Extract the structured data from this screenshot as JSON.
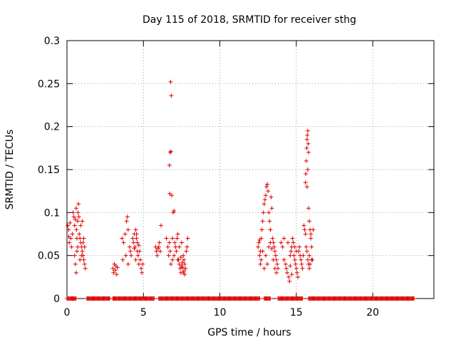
{
  "chart_data": {
    "type": "scatter",
    "title": "Day 115 of 2018, SRMTID for receiver sthg",
    "xlabel": "GPS time / hours",
    "ylabel": "SRMTID / TECUs",
    "xlim": [
      0,
      24
    ],
    "ylim": [
      0,
      0.3
    ],
    "x_ticks": [
      0,
      5,
      10,
      15,
      20
    ],
    "y_ticks": [
      0,
      0.05,
      0.1,
      0.15,
      0.2,
      0.25,
      0.3
    ],
    "x_tick_labels": [
      "0",
      "5",
      "10",
      "15",
      "20"
    ],
    "y_tick_labels": [
      "0",
      "0.05",
      "0.1",
      "0.15",
      "0.2",
      "0.25",
      "0.3"
    ],
    "grid": true,
    "marker": "plus",
    "color": "#dd0000",
    "series": [
      {
        "name": "",
        "points": [
          [
            0.05,
            0.085
          ],
          [
            0.1,
            0.08
          ],
          [
            0.12,
            0.072
          ],
          [
            0.15,
            0.065
          ],
          [
            0.2,
            0.088
          ],
          [
            0.25,
            0.07
          ],
          [
            0.3,
            0.06
          ],
          [
            0.35,
            0.075
          ],
          [
            0.4,
            0.1
          ],
          [
            0.45,
            0.095
          ],
          [
            0.5,
            0.085
          ],
          [
            0.55,
            0.092
          ],
          [
            0.6,
            0.105
          ],
          [
            0.62,
            0.08
          ],
          [
            0.65,
            0.07
          ],
          [
            0.7,
            0.09
          ],
          [
            0.72,
            0.1
          ],
          [
            0.75,
            0.11
          ],
          [
            0.78,
            0.095
          ],
          [
            0.5,
            0.05
          ],
          [
            0.55,
            0.04
          ],
          [
            0.6,
            0.03
          ],
          [
            0.65,
            0.055
          ],
          [
            0.7,
            0.06
          ],
          [
            0.8,
            0.075
          ],
          [
            0.85,
            0.07
          ],
          [
            0.9,
            0.065
          ],
          [
            0.95,
            0.06
          ],
          [
            1.0,
            0.055
          ],
          [
            1.05,
            0.05
          ],
          [
            1.1,
            0.045
          ],
          [
            1.15,
            0.04
          ],
          [
            1.2,
            0.035
          ],
          [
            0.9,
            0.085
          ],
          [
            1.0,
            0.09
          ],
          [
            1.1,
            0.07
          ],
          [
            1.15,
            0.06
          ],
          [
            0.85,
            0.045
          ],
          [
            0.95,
            0.05
          ],
          [
            1.05,
            0.065
          ],
          [
            3.0,
            0.035
          ],
          [
            3.05,
            0.03
          ],
          [
            3.1,
            0.04
          ],
          [
            3.15,
            0.033
          ],
          [
            3.2,
            0.038
          ],
          [
            3.25,
            0.028
          ],
          [
            3.3,
            0.036
          ],
          [
            3.6,
            0.07
          ],
          [
            3.7,
            0.065
          ],
          [
            3.8,
            0.075
          ],
          [
            3.9,
            0.09
          ],
          [
            3.95,
            0.095
          ],
          [
            4.0,
            0.08
          ],
          [
            4.1,
            0.06
          ],
          [
            4.15,
            0.055
          ],
          [
            4.2,
            0.05
          ],
          [
            4.3,
            0.07
          ],
          [
            4.35,
            0.065
          ],
          [
            4.4,
            0.075
          ],
          [
            4.45,
            0.06
          ],
          [
            4.5,
            0.08
          ],
          [
            4.55,
            0.07
          ],
          [
            4.6,
            0.065
          ],
          [
            4.65,
            0.05
          ],
          [
            4.7,
            0.04
          ],
          [
            4.75,
            0.055
          ],
          [
            4.8,
            0.045
          ],
          [
            4.85,
            0.035
          ],
          [
            4.9,
            0.03
          ],
          [
            4.95,
            0.04
          ],
          [
            4.5,
            0.045
          ],
          [
            4.6,
            0.055
          ],
          [
            4.7,
            0.062
          ],
          [
            4.4,
            0.058
          ],
          [
            4.55,
            0.075
          ],
          [
            3.65,
            0.045
          ],
          [
            3.85,
            0.05
          ],
          [
            4.0,
            0.04
          ],
          [
            5.8,
            0.06
          ],
          [
            5.85,
            0.055
          ],
          [
            5.9,
            0.05
          ],
          [
            5.95,
            0.058
          ],
          [
            6.0,
            0.06
          ],
          [
            6.05,
            0.065
          ],
          [
            6.1,
            0.055
          ],
          [
            6.15,
            0.085
          ],
          [
            6.5,
            0.07
          ],
          [
            6.6,
            0.06
          ],
          [
            6.65,
            0.05
          ],
          [
            6.7,
            0.155
          ],
          [
            6.72,
            0.122
          ],
          [
            6.75,
            0.17
          ],
          [
            6.8,
            0.171
          ],
          [
            6.78,
            0.252
          ],
          [
            6.82,
            0.236
          ],
          [
            6.85,
            0.12
          ],
          [
            6.9,
            0.07
          ],
          [
            6.95,
            0.1
          ],
          [
            7.0,
            0.102
          ],
          [
            7.05,
            0.065
          ],
          [
            7.1,
            0.06
          ],
          [
            7.15,
            0.055
          ],
          [
            7.2,
            0.07
          ],
          [
            7.25,
            0.075
          ],
          [
            6.8,
            0.04
          ],
          [
            6.9,
            0.045
          ],
          [
            7.0,
            0.05
          ],
          [
            6.7,
            0.065
          ],
          [
            6.75,
            0.055
          ],
          [
            7.3,
            0.045
          ],
          [
            7.35,
            0.04
          ],
          [
            7.4,
            0.035
          ],
          [
            7.45,
            0.03
          ],
          [
            7.5,
            0.038
          ],
          [
            7.55,
            0.042
          ],
          [
            7.6,
            0.05
          ],
          [
            7.65,
            0.045
          ],
          [
            7.7,
            0.04
          ],
          [
            7.75,
            0.035
          ],
          [
            7.8,
            0.055
          ],
          [
            7.85,
            0.06
          ],
          [
            7.9,
            0.07
          ],
          [
            7.5,
            0.065
          ],
          [
            7.6,
            0.03
          ],
          [
            7.7,
            0.028
          ],
          [
            7.45,
            0.048
          ],
          [
            7.55,
            0.036
          ],
          [
            7.65,
            0.032
          ],
          [
            7.35,
            0.06
          ],
          [
            7.25,
            0.045
          ],
          [
            12.5,
            0.06
          ],
          [
            12.55,
            0.065
          ],
          [
            12.6,
            0.05
          ],
          [
            12.65,
            0.055
          ],
          [
            12.7,
            0.07
          ],
          [
            12.75,
            0.08
          ],
          [
            12.8,
            0.09
          ],
          [
            12.85,
            0.1
          ],
          [
            12.9,
            0.11
          ],
          [
            12.95,
            0.115
          ],
          [
            13.0,
            0.12
          ],
          [
            13.05,
            0.13
          ],
          [
            13.1,
            0.133
          ],
          [
            13.15,
            0.125
          ],
          [
            13.2,
            0.1
          ],
          [
            13.25,
            0.09
          ],
          [
            13.3,
            0.08
          ],
          [
            13.35,
            0.118
          ],
          [
            13.4,
            0.105
          ],
          [
            13.45,
            0.07
          ],
          [
            13.5,
            0.065
          ],
          [
            13.55,
            0.06
          ],
          [
            13.6,
            0.055
          ],
          [
            13.65,
            0.05
          ],
          [
            13.7,
            0.045
          ],
          [
            13.75,
            0.04
          ],
          [
            13.8,
            0.035
          ],
          [
            13.0,
            0.05
          ],
          [
            13.1,
            0.04
          ],
          [
            12.9,
            0.035
          ],
          [
            12.7,
            0.045
          ],
          [
            12.8,
            0.055
          ],
          [
            13.2,
            0.06
          ],
          [
            13.3,
            0.065
          ],
          [
            13.4,
            0.058
          ],
          [
            13.5,
            0.045
          ],
          [
            13.6,
            0.035
          ],
          [
            13.7,
            0.03
          ],
          [
            12.6,
            0.068
          ],
          [
            12.65,
            0.04
          ],
          [
            14.0,
            0.065
          ],
          [
            14.1,
            0.06
          ],
          [
            14.2,
            0.045
          ],
          [
            14.3,
            0.04
          ],
          [
            14.35,
            0.035
          ],
          [
            14.4,
            0.03
          ],
          [
            14.5,
            0.025
          ],
          [
            14.55,
            0.02
          ],
          [
            14.6,
            0.05
          ],
          [
            14.65,
            0.055
          ],
          [
            14.7,
            0.06
          ],
          [
            14.75,
            0.07
          ],
          [
            14.8,
            0.065
          ],
          [
            14.85,
            0.05
          ],
          [
            14.9,
            0.045
          ],
          [
            14.95,
            0.04
          ],
          [
            15.0,
            0.035
          ],
          [
            15.05,
            0.03
          ],
          [
            15.1,
            0.025
          ],
          [
            15.15,
            0.055
          ],
          [
            15.2,
            0.06
          ],
          [
            15.25,
            0.05
          ],
          [
            15.3,
            0.045
          ],
          [
            15.35,
            0.04
          ],
          [
            15.4,
            0.035
          ],
          [
            15.45,
            0.05
          ],
          [
            15.5,
            0.085
          ],
          [
            15.55,
            0.08
          ],
          [
            15.6,
            0.075
          ],
          [
            15.65,
            0.06
          ],
          [
            15.7,
            0.055
          ],
          [
            15.75,
            0.045
          ],
          [
            15.8,
            0.04
          ],
          [
            15.85,
            0.05
          ],
          [
            14.2,
            0.07
          ],
          [
            14.45,
            0.065
          ],
          [
            14.9,
            0.06
          ],
          [
            15.0,
            0.055
          ],
          [
            14.6,
            0.038
          ],
          [
            14.7,
            0.028
          ],
          [
            15.6,
            0.135
          ],
          [
            15.62,
            0.145
          ],
          [
            15.65,
            0.16
          ],
          [
            15.68,
            0.175
          ],
          [
            15.7,
            0.185
          ],
          [
            15.72,
            0.19
          ],
          [
            15.75,
            0.195
          ],
          [
            15.78,
            0.18
          ],
          [
            15.8,
            0.17
          ],
          [
            15.7,
            0.13
          ],
          [
            15.75,
            0.15
          ],
          [
            15.8,
            0.105
          ],
          [
            15.85,
            0.09
          ],
          [
            15.9,
            0.08
          ],
          [
            15.95,
            0.075
          ],
          [
            16.0,
            0.06
          ],
          [
            16.05,
            0.045
          ],
          [
            16.1,
            0.08
          ],
          [
            15.9,
            0.04
          ],
          [
            16.0,
            0.045
          ],
          [
            15.85,
            0.035
          ],
          [
            15.95,
            0.07
          ]
        ],
        "zero_ranges": [
          [
            0,
            0.6
          ],
          [
            1.3,
            2.8
          ],
          [
            3.0,
            5.7
          ],
          [
            6.0,
            12.6
          ],
          [
            12.9,
            13.3
          ],
          [
            13.8,
            15.4
          ],
          [
            15.8,
            22.7
          ]
        ]
      }
    ]
  }
}
